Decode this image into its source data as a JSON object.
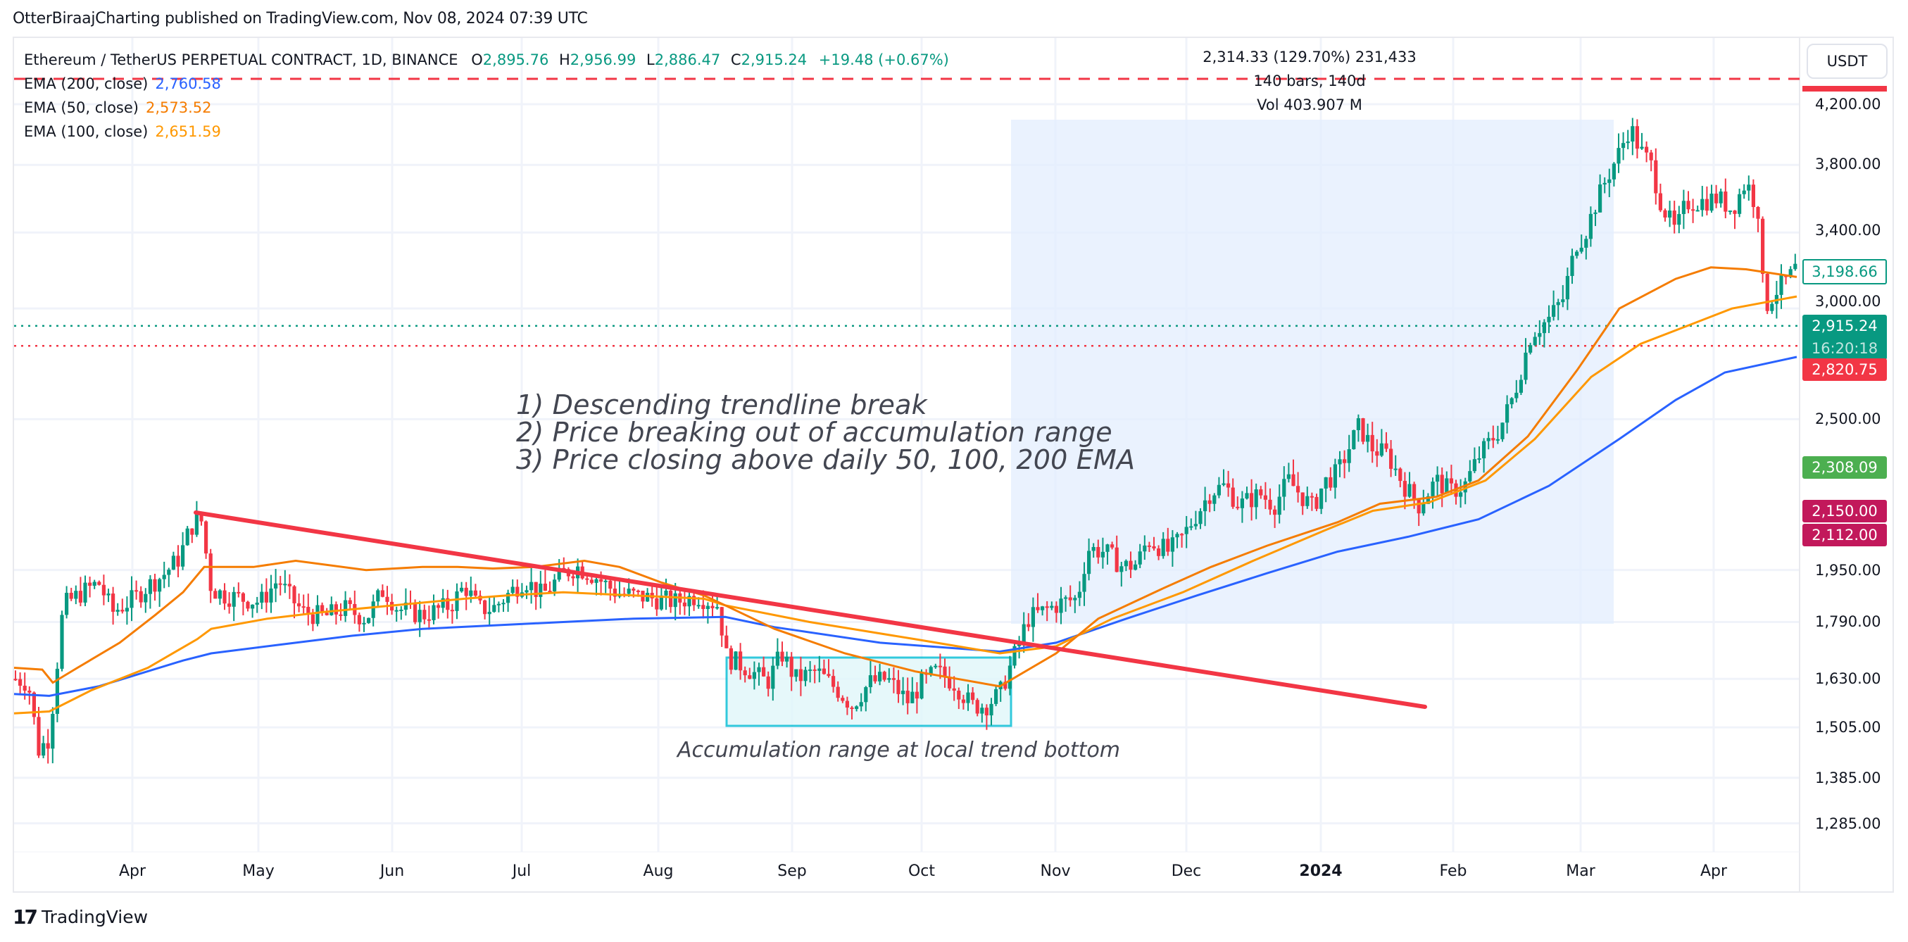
{
  "header": {
    "publisher_line": "OtterBiraajCharting published on TradingView.com, Nov 08, 2024 07:39 UTC"
  },
  "legend": {
    "symbol": "Ethereum / TetherUS PERPETUAL CONTRACT, 1D, BINANCE",
    "ohlc": {
      "o_label": "O",
      "o": "2,895.76",
      "h_label": "H",
      "h": "2,956.99",
      "l_label": "L",
      "l": "2,886.47",
      "c_label": "C",
      "c": "2,915.24",
      "change": "+19.48 (+0.67%)"
    },
    "indicators": [
      {
        "label": "EMA (200, close)",
        "value": "2,760.58",
        "color": "#2962ff"
      },
      {
        "label": "EMA (50, close)",
        "value": "2,573.52",
        "color": "#f57c00"
      },
      {
        "label": "EMA (100, close)",
        "value": "2,651.59",
        "color": "#ff9800"
      }
    ]
  },
  "measure_tool": {
    "line1": "2,314.33 (129.70%) 231,433",
    "line2": "140 bars, 140d",
    "line3": "Vol 403.907 M"
  },
  "annotations": {
    "points": [
      "1) Descending trendline break",
      "2) Price breaking out of accumulation range",
      "3) Price closing above daily 50, 100, 200 EMA"
    ],
    "accumulation_caption": "Accumulation range at local trend bottom"
  },
  "price_axis": {
    "currency_button": "USDT",
    "ticks": [
      "4,200.00",
      "3,800.00",
      "3,400.00",
      "3,000.00",
      "2,500.00",
      "1,950.00",
      "1,790.00",
      "1,630.00",
      "1,505.00",
      "1,385.00",
      "1,285.00"
    ],
    "tags": [
      {
        "value": "3,198.66",
        "style": "outline-green"
      },
      {
        "value": "2,915.24",
        "sub": "16:20:18",
        "style": "green"
      },
      {
        "value": "2,820.75",
        "style": "red"
      },
      {
        "value": "2,308.09",
        "style": "lightgreen"
      },
      {
        "value": "2,150.00",
        "style": "magenta"
      },
      {
        "value": "2,112.00",
        "style": "magenta"
      }
    ]
  },
  "time_axis": {
    "ticks": [
      "Apr",
      "May",
      "Jun",
      "Jul",
      "Aug",
      "Sep",
      "Oct",
      "Nov",
      "Dec",
      "2024",
      "Feb",
      "Mar",
      "Apr"
    ]
  },
  "footer": {
    "logo": "17",
    "brand": "TradingView"
  },
  "colors": {
    "up": "#089981",
    "down": "#f23645",
    "ema200": "#2962ff",
    "ema50": "#f57c00",
    "ema100": "#ff9800",
    "trendline": "#f23645",
    "range_box": "#00bcd4",
    "measure_box": "#e3eefd"
  },
  "chart_data": {
    "type": "candlestick",
    "title": "Ethereum / TetherUS PERPETUAL CONTRACT, 1D, BINANCE",
    "xlabel": "",
    "ylabel": "USDT",
    "y_scale": "log",
    "ylim": [
      1230,
      4450
    ],
    "x_ticks": [
      "Apr",
      "May",
      "Jun",
      "Jul",
      "Aug",
      "Sep",
      "Oct",
      "Nov",
      "Dec",
      "2024",
      "Feb",
      "Mar",
      "Apr"
    ],
    "y_ticks": [
      4200,
      3800,
      3400,
      3000,
      2500,
      1950,
      1790,
      1630,
      1505,
      1385,
      1285
    ],
    "current_price": 2915.24,
    "series": [
      {
        "name": "EMA 200",
        "color": "#2962ff",
        "last": 2760.58
      },
      {
        "name": "EMA 50",
        "color": "#f57c00",
        "last": 2573.52
      },
      {
        "name": "EMA 100",
        "color": "#ff9800",
        "last": 2651.59
      }
    ],
    "key_levels": {
      "dashed_red_top": 4350,
      "dotted_green": 2915.24,
      "dotted_red": 2820.75,
      "accumulation_range": [
        1520,
        1680
      ],
      "trendline_start": {
        "month": "mid-Apr",
        "price": 2140
      },
      "trendline_end": {
        "month": "late-Jan",
        "price": 1560
      }
    },
    "measure": {
      "change": 2314.33,
      "pct": 129.7,
      "bars": 140,
      "volume": "403.907M"
    },
    "monthly_closes_approx": {
      "Mar": 1640,
      "Apr": 1870,
      "May": 1870,
      "Jun": 1930,
      "Jul": 1860,
      "Aug": 1830,
      "Sep": 1660,
      "Oct": 1620,
      "Nov": 2030,
      "Dec": 2300,
      "Jan": 2300,
      "Feb": 3340,
      "Mar2": 3550,
      "Apr2": 3150
    }
  }
}
